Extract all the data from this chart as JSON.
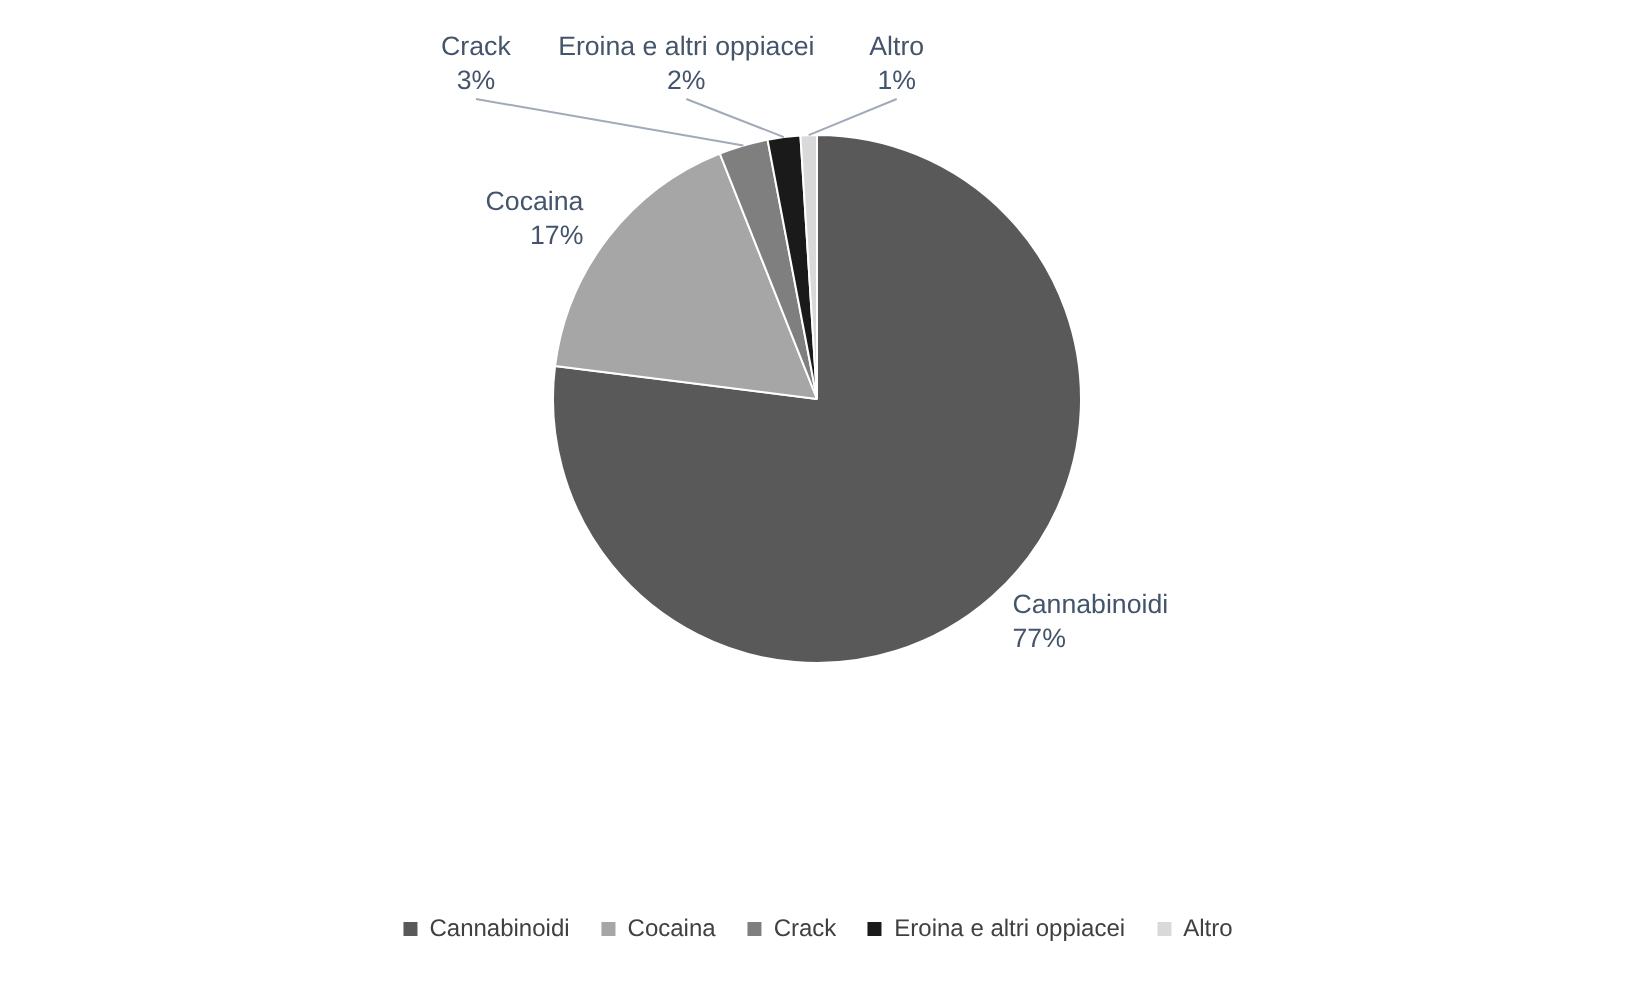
{
  "chart_data": {
    "type": "pie",
    "categories": [
      "Cannabinoidi",
      "Cocaina",
      "Crack",
      "Eroina e altri oppiacei",
      "Altro"
    ],
    "values": [
      77,
      17,
      3,
      2,
      1
    ],
    "colors": [
      "#595959",
      "#a6a6a6",
      "#7f7f7f",
      "#1a1a1a",
      "#d9d9d9"
    ],
    "value_labels": [
      "77%",
      "17%",
      "3%",
      "2%",
      "1%"
    ],
    "legend": "bottom"
  }
}
